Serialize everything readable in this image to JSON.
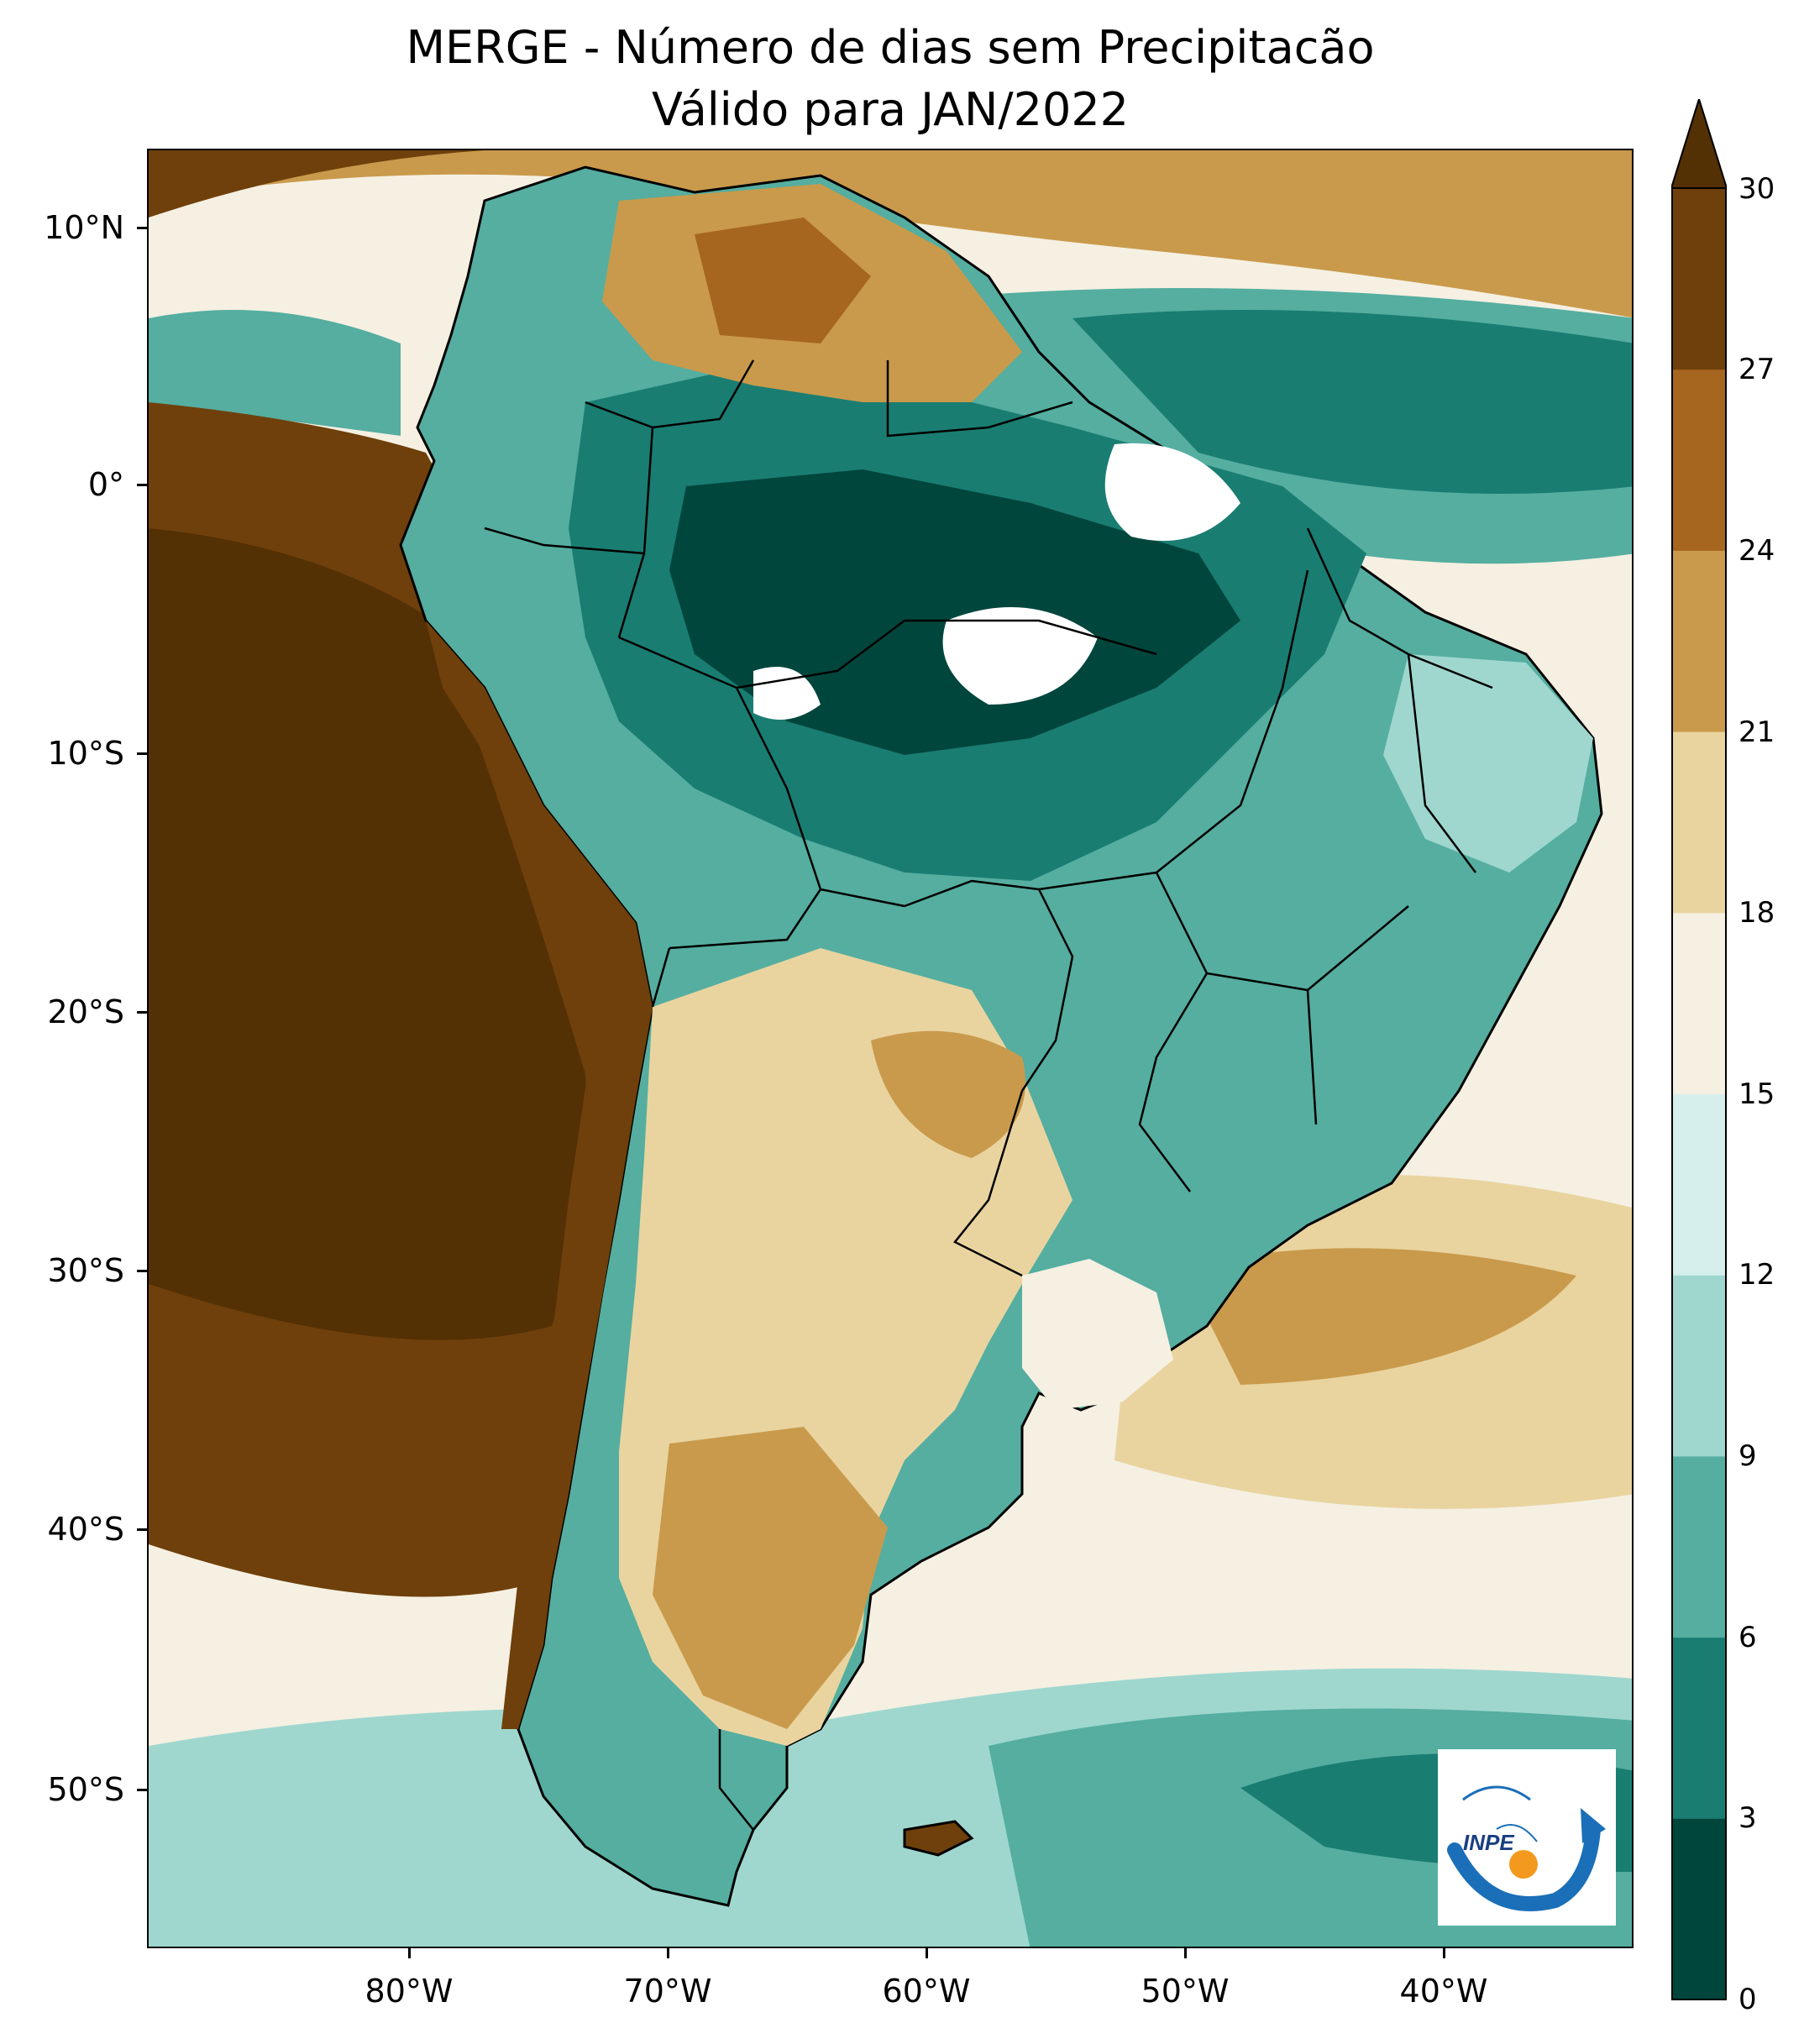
{
  "title": {
    "line1": "MERGE - Número de dias sem Precipitacão",
    "line2": "Válido para JAN/2022"
  },
  "axes": {
    "lat_labels": [
      "10°N",
      "0°",
      "10°S",
      "20°S",
      "30°S",
      "40°S",
      "50°S"
    ],
    "lon_labels": [
      "80°W",
      "70°W",
      "60°W",
      "50°W",
      "40°W"
    ]
  },
  "colorbar": {
    "labels": [
      "0",
      "3",
      "6",
      "9",
      "12",
      "15",
      "18",
      "21",
      "24",
      "27",
      "30"
    ],
    "colors": [
      "#01463d",
      "#1a7d72",
      "#55aea0",
      "#9fd7cf",
      "#d7efec",
      "#f5f0e2",
      "#e9d4a0",
      "#c99a4b",
      "#a6661f",
      "#6f400b"
    ],
    "extend": "max",
    "extend_color": "#543005"
  },
  "palette": {
    "very_wet": "#01463d",
    "wet": "#1a7d72",
    "moist": "#55aea0",
    "light": "#9fd7cf",
    "pale": "#d7efec",
    "neutral": "#f5f0e2",
    "dry_light": "#e9d4a0",
    "dry": "#c99a4b",
    "very_dry": "#6f400b",
    "extreme_dry": "#543005",
    "no_data": "#ffffff"
  },
  "logo": {
    "text": "INPE",
    "colors": {
      "arc": "#1a6fb8",
      "dot": "#f39a1e"
    }
  }
}
